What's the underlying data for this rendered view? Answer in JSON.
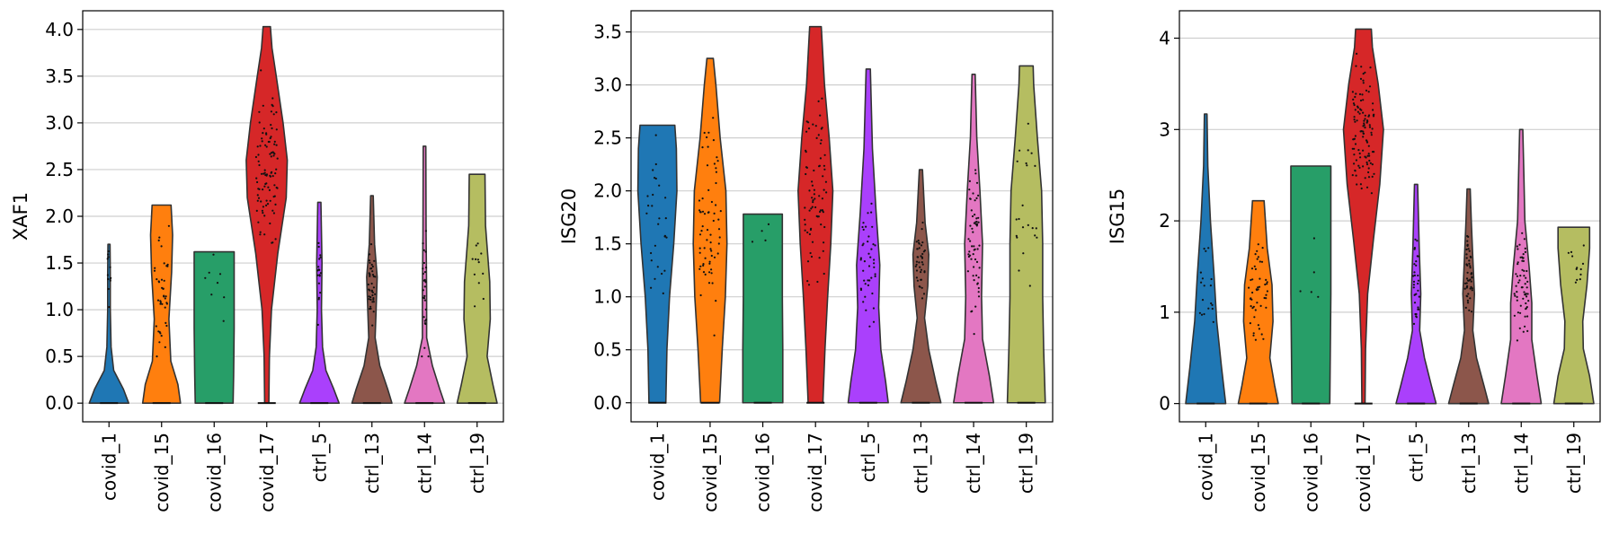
{
  "chart_data": [
    {
      "type": "violin",
      "ylabel": "XAF1",
      "categories": [
        "covid_1",
        "covid_15",
        "covid_16",
        "covid_17",
        "ctrl_5",
        "ctrl_13",
        "ctrl_14",
        "ctrl_19"
      ],
      "colors": [
        "#1f77b4",
        "#ff7f0e",
        "#279e68",
        "#d62728",
        "#aa40fc",
        "#8c564b",
        "#e377c2",
        "#b5bd61"
      ],
      "ylim": [
        -0.2,
        4.2
      ],
      "yticks": [
        "0.0",
        "0.5",
        "1.0",
        "1.5",
        "2.0",
        "2.5",
        "3.0",
        "3.5",
        "4.0"
      ],
      "grid": true,
      "violins": [
        {
          "max": 1.7,
          "widths": [
            [
              0,
              0.75
            ],
            [
              0.15,
              0.55
            ],
            [
              0.35,
              0.18
            ],
            [
              0.6,
              0.08
            ],
            [
              1.0,
              0.05
            ],
            [
              1.4,
              0.05
            ],
            [
              1.7,
              0.04
            ]
          ],
          "median": 1.3,
          "spread": 0.3,
          "dot_count": 12
        },
        {
          "max": 2.12,
          "widths": [
            [
              0,
              0.72
            ],
            [
              0.2,
              0.62
            ],
            [
              0.45,
              0.35
            ],
            [
              0.9,
              0.28
            ],
            [
              1.4,
              0.38
            ],
            [
              1.8,
              0.42
            ],
            [
              2.12,
              0.36
            ]
          ],
          "median": 1.2,
          "spread": 0.6,
          "dot_count": 40
        },
        {
          "max": 1.62,
          "widths": [
            [
              0,
              0.72
            ],
            [
              0.3,
              0.74
            ],
            [
              0.8,
              0.76
            ],
            [
              1.2,
              0.76
            ],
            [
              1.62,
              0.76
            ]
          ],
          "median": 1.2,
          "spread": 0.35,
          "dot_count": 8
        },
        {
          "max": 4.03,
          "widths": [
            [
              0,
              0.08
            ],
            [
              0.5,
              0.1
            ],
            [
              1.0,
              0.18
            ],
            [
              1.6,
              0.42
            ],
            [
              2.2,
              0.74
            ],
            [
              2.6,
              0.78
            ],
            [
              3.0,
              0.62
            ],
            [
              3.5,
              0.36
            ],
            [
              3.8,
              0.2
            ],
            [
              4.03,
              0.14
            ]
          ],
          "median": 2.5,
          "spread": 0.55,
          "dot_count": 95
        },
        {
          "max": 2.15,
          "widths": [
            [
              0,
              0.75
            ],
            [
              0.15,
              0.55
            ],
            [
              0.35,
              0.25
            ],
            [
              0.6,
              0.12
            ],
            [
              1.0,
              0.08
            ],
            [
              1.5,
              0.1
            ],
            [
              2.15,
              0.06
            ]
          ],
          "median": 1.3,
          "spread": 0.3,
          "dot_count": 18
        },
        {
          "max": 2.22,
          "widths": [
            [
              0,
              0.76
            ],
            [
              0.15,
              0.6
            ],
            [
              0.4,
              0.3
            ],
            [
              0.7,
              0.12
            ],
            [
              1.0,
              0.16
            ],
            [
              1.35,
              0.2
            ],
            [
              1.7,
              0.1
            ],
            [
              2.22,
              0.05
            ]
          ],
          "median": 1.3,
          "spread": 0.25,
          "dot_count": 40
        },
        {
          "max": 2.75,
          "widths": [
            [
              0,
              0.76
            ],
            [
              0.15,
              0.58
            ],
            [
              0.4,
              0.3
            ],
            [
              0.7,
              0.08
            ],
            [
              1.2,
              0.08
            ],
            [
              1.8,
              0.06
            ],
            [
              2.75,
              0.05
            ]
          ],
          "median": 1.2,
          "spread": 0.45,
          "dot_count": 28
        },
        {
          "max": 2.45,
          "widths": [
            [
              0,
              0.76
            ],
            [
              0.2,
              0.6
            ],
            [
              0.5,
              0.38
            ],
            [
              0.9,
              0.5
            ],
            [
              1.3,
              0.48
            ],
            [
              1.9,
              0.32
            ],
            [
              2.45,
              0.3
            ]
          ],
          "median": 1.4,
          "spread": 0.45,
          "dot_count": 12
        }
      ]
    },
    {
      "type": "violin",
      "ylabel": "ISG20",
      "categories": [
        "covid_1",
        "covid_15",
        "covid_16",
        "covid_17",
        "ctrl_5",
        "ctrl_13",
        "ctrl_14",
        "ctrl_19"
      ],
      "colors": [
        "#1f77b4",
        "#ff7f0e",
        "#279e68",
        "#d62728",
        "#aa40fc",
        "#8c564b",
        "#e377c2",
        "#b5bd61"
      ],
      "ylim": [
        -0.18,
        3.7
      ],
      "yticks": [
        "0.0",
        "0.5",
        "1.0",
        "1.5",
        "2.0",
        "2.5",
        "3.0",
        "3.5"
      ],
      "grid": true,
      "violins": [
        {
          "max": 2.62,
          "widths": [
            [
              0,
              0.32
            ],
            [
              0.5,
              0.36
            ],
            [
              1.0,
              0.46
            ],
            [
              1.5,
              0.62
            ],
            [
              2.0,
              0.74
            ],
            [
              2.4,
              0.72
            ],
            [
              2.62,
              0.66
            ]
          ],
          "median": 1.7,
          "spread": 0.45,
          "dot_count": 28
        },
        {
          "max": 3.25,
          "widths": [
            [
              0,
              0.36
            ],
            [
              0.5,
              0.46
            ],
            [
              1.0,
              0.58
            ],
            [
              1.5,
              0.64
            ],
            [
              2.0,
              0.6
            ],
            [
              2.5,
              0.38
            ],
            [
              3.0,
              0.22
            ],
            [
              3.25,
              0.12
            ]
          ],
          "median": 1.7,
          "spread": 0.6,
          "dot_count": 65
        },
        {
          "max": 1.78,
          "widths": [
            [
              0,
              0.76
            ],
            [
              0.5,
              0.76
            ],
            [
              1.0,
              0.74
            ],
            [
              1.5,
              0.74
            ],
            [
              1.78,
              0.74
            ]
          ],
          "median": 1.5,
          "spread": 0.25,
          "dot_count": 4
        },
        {
          "max": 3.55,
          "widths": [
            [
              0,
              0.28
            ],
            [
              0.5,
              0.36
            ],
            [
              1.0,
              0.46
            ],
            [
              1.5,
              0.58
            ],
            [
              2.0,
              0.66
            ],
            [
              2.5,
              0.52
            ],
            [
              3.0,
              0.34
            ],
            [
              3.55,
              0.22
            ]
          ],
          "median": 2.0,
          "spread": 0.6,
          "dot_count": 75
        },
        {
          "max": 3.15,
          "widths": [
            [
              0,
              0.76
            ],
            [
              0.2,
              0.66
            ],
            [
              0.5,
              0.48
            ],
            [
              0.9,
              0.4
            ],
            [
              1.3,
              0.44
            ],
            [
              1.8,
              0.3
            ],
            [
              2.4,
              0.16
            ],
            [
              3.15,
              0.08
            ]
          ],
          "median": 1.3,
          "spread": 0.45,
          "dot_count": 42
        },
        {
          "max": 2.2,
          "widths": [
            [
              0,
              0.76
            ],
            [
              0.2,
              0.56
            ],
            [
              0.5,
              0.3
            ],
            [
              0.8,
              0.14
            ],
            [
              1.1,
              0.26
            ],
            [
              1.4,
              0.3
            ],
            [
              1.7,
              0.16
            ],
            [
              2.2,
              0.06
            ]
          ],
          "median": 1.35,
          "spread": 0.25,
          "dot_count": 40
        },
        {
          "max": 3.1,
          "widths": [
            [
              0,
              0.76
            ],
            [
              0.25,
              0.6
            ],
            [
              0.6,
              0.34
            ],
            [
              1.0,
              0.3
            ],
            [
              1.5,
              0.34
            ],
            [
              2.0,
              0.24
            ],
            [
              2.5,
              0.12
            ],
            [
              3.1,
              0.06
            ]
          ],
          "median": 1.5,
          "spread": 0.5,
          "dot_count": 58
        },
        {
          "max": 3.18,
          "widths": [
            [
              0,
              0.72
            ],
            [
              0.5,
              0.66
            ],
            [
              1.0,
              0.62
            ],
            [
              1.5,
              0.62
            ],
            [
              2.0,
              0.58
            ],
            [
              2.5,
              0.42
            ],
            [
              3.0,
              0.28
            ],
            [
              3.18,
              0.26
            ]
          ],
          "median": 1.8,
          "spread": 0.55,
          "dot_count": 22
        }
      ]
    },
    {
      "type": "violin",
      "ylabel": "ISG15",
      "categories": [
        "covid_1",
        "covid_15",
        "covid_16",
        "covid_17",
        "ctrl_5",
        "ctrl_13",
        "ctrl_14",
        "ctrl_19"
      ],
      "colors": [
        "#1f77b4",
        "#ff7f0e",
        "#279e68",
        "#d62728",
        "#aa40fc",
        "#8c564b",
        "#e377c2",
        "#b5bd61"
      ],
      "ylim": [
        -0.2,
        4.3
      ],
      "yticks": [
        "0",
        "1",
        "2",
        "3",
        "4"
      ],
      "grid": true,
      "violins": [
        {
          "max": 3.17,
          "widths": [
            [
              0,
              0.76
            ],
            [
              0.4,
              0.6
            ],
            [
              0.9,
              0.42
            ],
            [
              1.4,
              0.32
            ],
            [
              2.0,
              0.18
            ],
            [
              2.6,
              0.08
            ],
            [
              3.17,
              0.05
            ]
          ],
          "median": 1.2,
          "spread": 0.45,
          "dot_count": 18
        },
        {
          "max": 2.22,
          "widths": [
            [
              0,
              0.76
            ],
            [
              0.2,
              0.62
            ],
            [
              0.5,
              0.44
            ],
            [
              0.9,
              0.56
            ],
            [
              1.3,
              0.52
            ],
            [
              1.7,
              0.34
            ],
            [
              2.22,
              0.22
            ]
          ],
          "median": 1.1,
          "spread": 0.4,
          "dot_count": 48
        },
        {
          "max": 2.6,
          "widths": [
            [
              0,
              0.72
            ],
            [
              0.6,
              0.74
            ],
            [
              1.2,
              0.76
            ],
            [
              1.8,
              0.76
            ],
            [
              2.6,
              0.76
            ]
          ],
          "median": 1.3,
          "spread": 0.5,
          "dot_count": 5
        },
        {
          "max": 4.1,
          "widths": [
            [
              0,
              0.06
            ],
            [
              0.6,
              0.08
            ],
            [
              1.2,
              0.16
            ],
            [
              1.8,
              0.38
            ],
            [
              2.4,
              0.62
            ],
            [
              3.0,
              0.76
            ],
            [
              3.5,
              0.56
            ],
            [
              3.9,
              0.34
            ],
            [
              4.1,
              0.3
            ]
          ],
          "median": 2.95,
          "spread": 0.5,
          "dot_count": 110
        },
        {
          "max": 2.4,
          "widths": [
            [
              0,
              0.76
            ],
            [
              0.2,
              0.58
            ],
            [
              0.5,
              0.32
            ],
            [
              0.8,
              0.14
            ],
            [
              1.2,
              0.18
            ],
            [
              1.7,
              0.12
            ],
            [
              2.4,
              0.06
            ]
          ],
          "median": 1.35,
          "spread": 0.35,
          "dot_count": 32
        },
        {
          "max": 2.35,
          "widths": [
            [
              0,
              0.76
            ],
            [
              0.2,
              0.58
            ],
            [
              0.5,
              0.3
            ],
            [
              0.8,
              0.16
            ],
            [
              1.2,
              0.22
            ],
            [
              1.6,
              0.16
            ],
            [
              2.0,
              0.1
            ],
            [
              2.35,
              0.06
            ]
          ],
          "median": 1.4,
          "spread": 0.3,
          "dot_count": 50
        },
        {
          "max": 3.0,
          "widths": [
            [
              0,
              0.76
            ],
            [
              0.3,
              0.6
            ],
            [
              0.7,
              0.4
            ],
            [
              1.1,
              0.4
            ],
            [
              1.5,
              0.3
            ],
            [
              2.0,
              0.14
            ],
            [
              2.5,
              0.1
            ],
            [
              3.0,
              0.06
            ]
          ],
          "median": 1.3,
          "spread": 0.4,
          "dot_count": 60
        },
        {
          "max": 1.93,
          "widths": [
            [
              0,
              0.76
            ],
            [
              0.3,
              0.6
            ],
            [
              0.6,
              0.36
            ],
            [
              0.9,
              0.34
            ],
            [
              1.3,
              0.5
            ],
            [
              1.7,
              0.6
            ],
            [
              1.93,
              0.6
            ]
          ],
          "median": 1.5,
          "spread": 0.2,
          "dot_count": 12
        }
      ]
    }
  ]
}
